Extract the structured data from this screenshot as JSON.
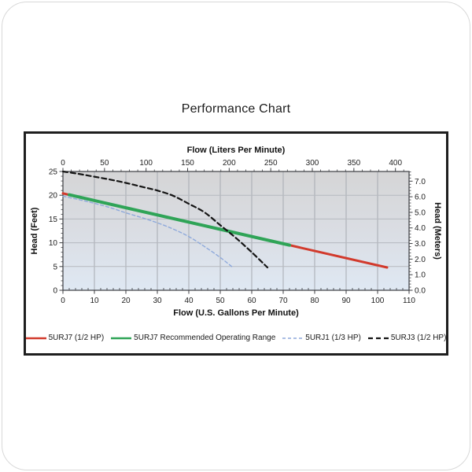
{
  "page": {
    "title": "Performance Chart"
  },
  "chart_data": {
    "type": "line",
    "title": "Performance Chart",
    "grid": true,
    "legend_position": "bottom",
    "plot_background": {
      "top_color": "#d5d5d6",
      "mid_color": "#dadde3",
      "bottom_color": "#dfe8f3"
    },
    "grid_color_vertical": "#a6aab1",
    "grid_color_horizontal": "#b6b9bf",
    "axis_line_color": "#3c3e42",
    "axes": {
      "bottom": {
        "label": "Flow (U.S. Gallons Per Minute)",
        "range": [
          0,
          110
        ],
        "ticks": [
          0,
          10,
          20,
          30,
          40,
          50,
          60,
          70,
          80,
          90,
          100,
          110
        ],
        "minor_step": 2
      },
      "top": {
        "label": "Flow (Liters Per Minute)",
        "ticks": [
          0,
          50,
          100,
          150,
          200,
          250,
          300,
          350,
          400
        ],
        "minor_step": 10,
        "liters_per_gallon": 3.7854
      },
      "left": {
        "label": "Head (Feet)",
        "range": [
          0,
          25
        ],
        "ticks": [
          0,
          5,
          10,
          15,
          20,
          25
        ],
        "minor_step": 1
      },
      "right": {
        "label": "Head (Meters)",
        "ticks": [
          "0.0",
          "1.0",
          "2.0",
          "3.0",
          "4.0",
          "5.0",
          "6.0",
          "7.0"
        ],
        "minor_step": 0.2,
        "feet_per_meter": 3.2808
      }
    },
    "series": [
      {
        "name": "5URJ7 (1/2 HP)",
        "color": "#d23a2c",
        "style": "solid",
        "width": 3,
        "dash": "",
        "points": [
          [
            0,
            20.4
          ],
          [
            103,
            4.8
          ]
        ]
      },
      {
        "name": "5URJ7 Recommended Operating Range",
        "color": "#2fa457",
        "style": "solid",
        "width": 4,
        "dash": "",
        "points": [
          [
            2,
            20.1
          ],
          [
            72,
            9.5
          ]
        ]
      },
      {
        "name": "5URJ1 (1/3 HP)",
        "color": "#8ea9db",
        "style": "dashed",
        "width": 1.4,
        "dash": "4 3",
        "points": [
          [
            0,
            19.8
          ],
          [
            5,
            19.1
          ],
          [
            10,
            18.3
          ],
          [
            15,
            17.4
          ],
          [
            20,
            16.3
          ],
          [
            25,
            15.3
          ],
          [
            30,
            14.2
          ],
          [
            35,
            12.9
          ],
          [
            40,
            11.3
          ],
          [
            45,
            9.2
          ],
          [
            50,
            6.9
          ],
          [
            54,
            4.8
          ]
        ]
      },
      {
        "name": "5URJ3 (1/2 HP)",
        "color": "#141414",
        "style": "dashed",
        "width": 2.2,
        "dash": "6 4",
        "points": [
          [
            0,
            25.0
          ],
          [
            5,
            24.5
          ],
          [
            10,
            23.9
          ],
          [
            15,
            23.3
          ],
          [
            20,
            22.6
          ],
          [
            25,
            21.8
          ],
          [
            30,
            21.0
          ],
          [
            35,
            19.9
          ],
          [
            40,
            18.2
          ],
          [
            45,
            16.4
          ],
          [
            50,
            13.7
          ],
          [
            55,
            11.0
          ],
          [
            60,
            8.0
          ],
          [
            65,
            4.8
          ]
        ]
      }
    ]
  }
}
